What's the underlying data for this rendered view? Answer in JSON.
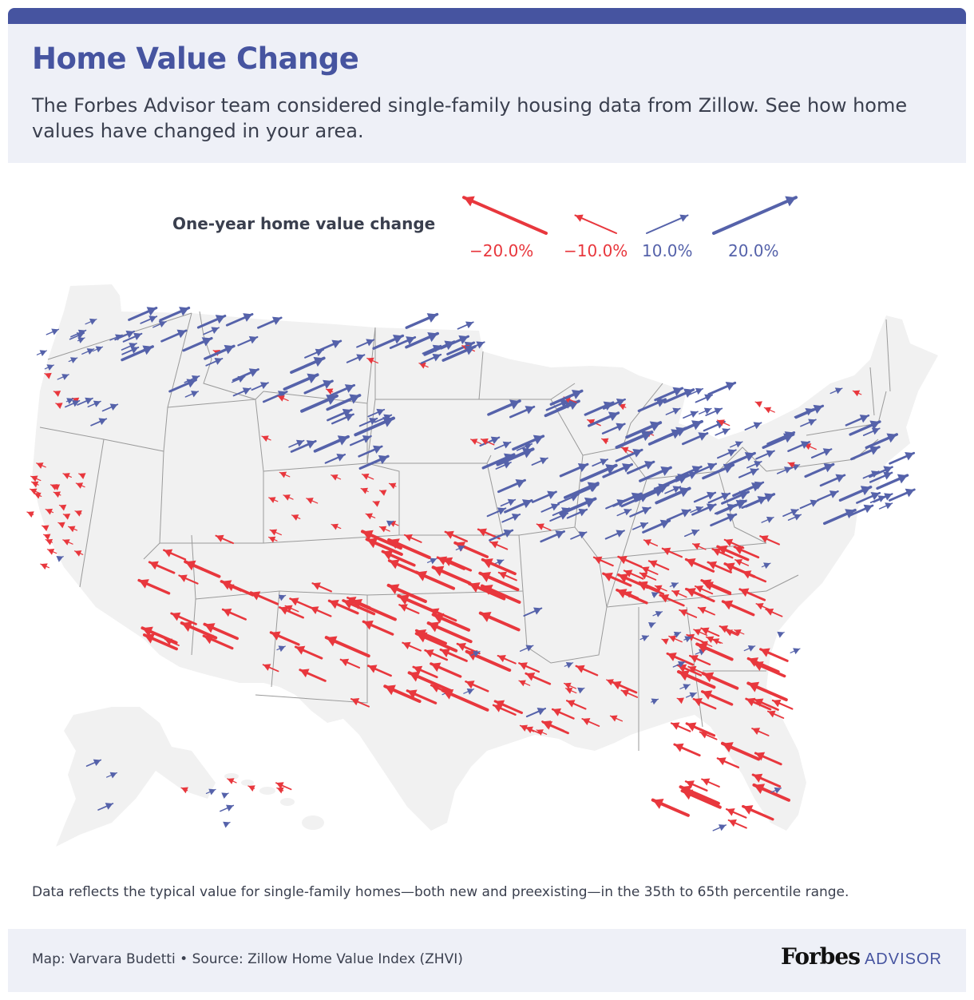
{
  "header": {
    "title": "Home Value Change",
    "subtitle": "The Forbes Advisor team considered single-family housing data from Zillow. See how home values have changed in your area."
  },
  "legend": {
    "title": "One-year home value change",
    "items": [
      {
        "label": "−20.0%",
        "value": -20
      },
      {
        "label": "−10.0%",
        "value": -10
      },
      {
        "label": "10.0%",
        "value": 10
      },
      {
        "label": "20.0%",
        "value": 20
      }
    ]
  },
  "colors": {
    "accent": "#4654a0",
    "decline": "#e8373d",
    "increase": "#5562aa",
    "land": "#f1f1f1",
    "border": "#9a9a9a",
    "panel": "#eef0f7"
  },
  "map": {
    "region": "United States",
    "metric": "One-year home value change",
    "arrow_samples": [
      {
        "region": "Pacific Northwest",
        "value": 6
      },
      {
        "region": "California coast",
        "value": -4
      },
      {
        "region": "Montana",
        "value": 12
      },
      {
        "region": "North Dakota",
        "value": 13
      },
      {
        "region": "Wyoming",
        "value": 15
      },
      {
        "region": "Colorado",
        "value": -5
      },
      {
        "region": "Arizona",
        "value": -14
      },
      {
        "region": "New Mexico",
        "value": -12
      },
      {
        "region": "Texas",
        "value": -18
      },
      {
        "region": "Oklahoma",
        "value": -16
      },
      {
        "region": "Midwest",
        "value": 14
      },
      {
        "region": "Northeast",
        "value": 12
      },
      {
        "region": "Louisiana",
        "value": -10
      },
      {
        "region": "Tennessee",
        "value": -12
      },
      {
        "region": "Florida",
        "value": -15
      },
      {
        "region": "Alaska",
        "value": 8
      },
      {
        "region": "Hawaii",
        "value": -6
      }
    ]
  },
  "note": "Data reflects the typical value for single-family homes—both new and preexisting—in the 35th to 65th percentile range.",
  "footer": {
    "credit": "Map: Varvara Budetti • Source: Zillow Home Value Index (ZHVI)",
    "logo_main": "Forbes",
    "logo_sub": "ADVISOR"
  }
}
